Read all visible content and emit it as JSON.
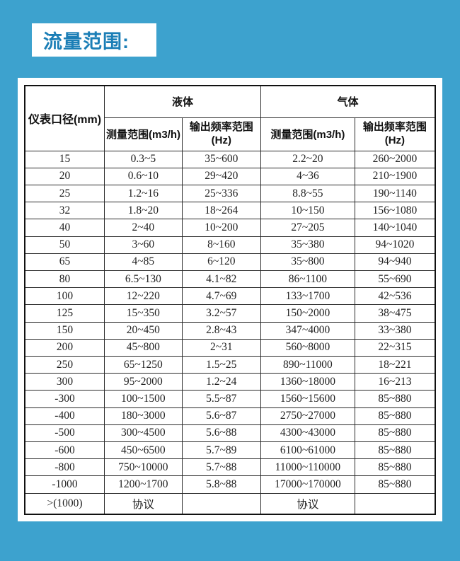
{
  "page": {
    "background_color": "#3da2ce",
    "panel_color": "#ffffff",
    "title_color": "#1b7eb6"
  },
  "title": {
    "text": "流量范围:"
  },
  "table": {
    "header": {
      "diameter": "仪表口径(mm)",
      "liquid_group": "液体",
      "gas_group": "气体",
      "liquid_measure_range": "测量范围(m3/h)",
      "liquid_freq_range": "输出频率范围",
      "liquid_freq_unit": "(Hz)",
      "gas_measure_range": "测量范围(m3/h)",
      "gas_freq_range": "输出频率范围",
      "gas_freq_unit": "(Hz)"
    },
    "rows": [
      [
        "15",
        "0.3~5",
        "35~600",
        "2.2~20",
        "260~2000"
      ],
      [
        "20",
        "0.6~10",
        "29~420",
        "4~36",
        "210~1900"
      ],
      [
        "25",
        "1.2~16",
        "25~336",
        "8.8~55",
        "190~1140"
      ],
      [
        "32",
        "1.8~20",
        "18~264",
        "10~150",
        "156~1080"
      ],
      [
        "40",
        "2~40",
        "10~200",
        "27~205",
        "140~1040"
      ],
      [
        "50",
        "3~60",
        "8~160",
        "35~380",
        "94~1020"
      ],
      [
        "65",
        "4~85",
        "6~120",
        "35~800",
        "94~940"
      ],
      [
        "80",
        "6.5~130",
        "4.1~82",
        "86~1100",
        "55~690"
      ],
      [
        "100",
        "12~220",
        "4.7~69",
        "133~1700",
        "42~536"
      ],
      [
        "125",
        "15~350",
        "3.2~57",
        "150~2000",
        "38~475"
      ],
      [
        "150",
        "20~450",
        "2.8~43",
        "347~4000",
        "33~380"
      ],
      [
        "200",
        "45~800",
        "2~31",
        "560~8000",
        "22~315"
      ],
      [
        "250",
        "65~1250",
        "1.5~25",
        "890~11000",
        "18~221"
      ],
      [
        "300",
        "95~2000",
        "1.2~24",
        "1360~18000",
        "16~213"
      ],
      [
        "-300",
        "100~1500",
        "5.5~87",
        "1560~15600",
        "85~880"
      ],
      [
        "-400",
        "180~3000",
        "5.6~87",
        "2750~27000",
        "85~880"
      ],
      [
        "-500",
        "300~4500",
        "5.6~88",
        "4300~43000",
        "85~880"
      ],
      [
        "-600",
        "450~6500",
        "5.7~89",
        "6100~61000",
        "85~880"
      ],
      [
        "-800",
        "750~10000",
        "5.7~88",
        "11000~110000",
        "85~880"
      ],
      [
        "-1000",
        "1200~1700",
        "5.8~88",
        "17000~170000",
        "85~880"
      ],
      [
        ">(1000)",
        "协议",
        "",
        "协议",
        ""
      ]
    ]
  }
}
